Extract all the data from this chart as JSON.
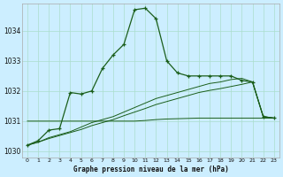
{
  "title": "Graphe pression niveau de la mer (hPa)",
  "background_color": "#cceeff",
  "grid_color": "#aaddcc",
  "line_color": "#1a5e1a",
  "x_labels": [
    "0",
    "1",
    "2",
    "3",
    "4",
    "5",
    "6",
    "7",
    "8",
    "9",
    "10",
    "11",
    "12",
    "13",
    "14",
    "15",
    "16",
    "17",
    "18",
    "19",
    "20",
    "21",
    "22",
    "23"
  ],
  "ylim": [
    1029.8,
    1034.9
  ],
  "yticks": [
    1030,
    1031,
    1032,
    1033,
    1034
  ],
  "s_main": [
    1030.2,
    1030.35,
    1030.7,
    1030.75,
    1031.95,
    1031.9,
    1032.0,
    1032.75,
    1033.2,
    1033.55,
    1034.7,
    1034.75,
    1034.4,
    1033.0,
    1032.6,
    1032.5,
    1032.5,
    1032.5,
    1032.5,
    1032.5,
    1032.35,
    1032.3,
    1031.15,
    1031.1
  ],
  "s_flat1": [
    1031.0,
    1031.0,
    1031.0,
    1031.0,
    1031.0,
    1031.0,
    1031.0,
    1031.0,
    1031.0,
    1031.0,
    1031.0,
    1031.02,
    1031.05,
    1031.07,
    1031.08,
    1031.09,
    1031.1,
    1031.1,
    1031.1,
    1031.1,
    1031.1,
    1031.1,
    1031.1,
    1031.1
  ],
  "s_flat2": [
    1030.2,
    1030.3,
    1030.45,
    1030.55,
    1030.65,
    1030.8,
    1030.95,
    1031.05,
    1031.15,
    1031.3,
    1031.45,
    1031.6,
    1031.75,
    1031.85,
    1031.95,
    1032.05,
    1032.15,
    1032.25,
    1032.3,
    1032.38,
    1032.42,
    1032.3,
    1031.15,
    1031.1
  ],
  "s_flat3": [
    1030.2,
    1030.3,
    1030.42,
    1030.52,
    1030.62,
    1030.72,
    1030.85,
    1030.95,
    1031.05,
    1031.18,
    1031.3,
    1031.42,
    1031.55,
    1031.65,
    1031.75,
    1031.85,
    1031.95,
    1032.02,
    1032.08,
    1032.15,
    1032.22,
    1032.3,
    1031.15,
    1031.1
  ]
}
